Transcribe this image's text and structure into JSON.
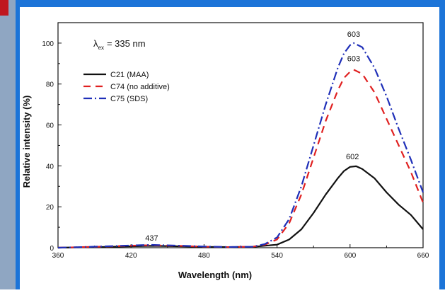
{
  "chart_data": {
    "type": "line",
    "xlabel": "Wavelength (nm)",
    "ylabel": "Relative intensity (%)",
    "xlim": [
      360,
      660
    ],
    "ylim": [
      0,
      110
    ],
    "xticks": [
      360,
      420,
      480,
      540,
      600,
      660
    ],
    "yticks": [
      0,
      20,
      40,
      60,
      80,
      100
    ],
    "legend_position": "top-left",
    "excitation_label_prefix": "λ",
    "excitation_label_sub": "ex",
    "excitation_label_value": "= 335 nm",
    "series": [
      {
        "name": "C21 (MAA)",
        "color": "#111111",
        "dash": "solid",
        "x": [
          360,
          380,
          400,
          420,
          437,
          460,
          480,
          500,
          520,
          540,
          550,
          560,
          570,
          580,
          590,
          595,
          600,
          605,
          610,
          620,
          630,
          640,
          650,
          660
        ],
        "y": [
          0,
          0.2,
          0.4,
          0.7,
          0.9,
          0.7,
          0.4,
          0.3,
          0.4,
          1.5,
          4,
          9,
          17,
          26,
          34,
          37.5,
          39.5,
          39.8,
          38.5,
          34,
          27,
          21,
          16,
          9
        ]
      },
      {
        "name": "C74 (no additive)",
        "color": "#e02020",
        "dash": "10,7",
        "x": [
          360,
          380,
          400,
          420,
          437,
          460,
          480,
          500,
          520,
          530,
          540,
          550,
          560,
          570,
          580,
          590,
          595,
          600,
          603,
          610,
          620,
          630,
          640,
          650,
          660
        ],
        "y": [
          0,
          0.3,
          0.6,
          1.0,
          1.2,
          0.9,
          0.5,
          0.3,
          0.5,
          1.5,
          4,
          12,
          26,
          44,
          62,
          77,
          83,
          86,
          87,
          85,
          76,
          63,
          50,
          37,
          22
        ]
      },
      {
        "name": "C75 (SDS)",
        "color": "#1f2fb8",
        "dash": "12,4,2,4",
        "x": [
          360,
          380,
          400,
          420,
          437,
          460,
          480,
          500,
          520,
          530,
          540,
          550,
          560,
          570,
          580,
          590,
          595,
          600,
          603,
          610,
          620,
          630,
          640,
          650,
          660
        ],
        "y": [
          0,
          0.3,
          0.7,
          1.1,
          1.4,
          1.0,
          0.6,
          0.3,
          0.5,
          1.8,
          5,
          14,
          30,
          50,
          70,
          88,
          95,
          99,
          100,
          98,
          88,
          74,
          58,
          43,
          27
        ]
      }
    ],
    "annotations": [
      {
        "text": "603",
        "x": 603,
        "y": 100,
        "series": 2
      },
      {
        "text": "603",
        "x": 603,
        "y": 87,
        "series": 1
      },
      {
        "text": "602",
        "x": 602,
        "y": 39.8,
        "series": 0
      },
      {
        "text": "437",
        "x": 437,
        "y": 1.4,
        "series": 2
      }
    ]
  }
}
